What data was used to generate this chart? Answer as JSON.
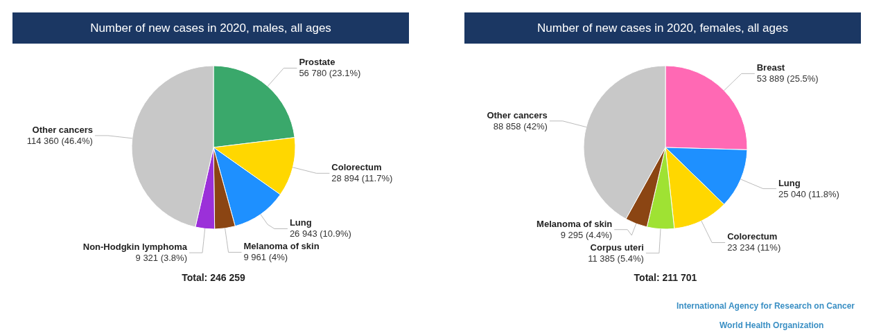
{
  "chart_data": [
    {
      "type": "pie",
      "title": "Number of new cases in 2020, males, all ages",
      "categories": [
        "Prostate",
        "Colorectum",
        "Lung",
        "Melanoma of skin",
        "Non-Hodgkin lymphoma",
        "Other cancers"
      ],
      "values": [
        56780,
        28894,
        26943,
        9961,
        9321,
        114360
      ],
      "value_labels": [
        "56 780 (23.1%)",
        "28 894 (11.7%)",
        "26 943 (10.9%)",
        "9 961 (4%)",
        "9 321 (3.8%)",
        "114 360 (46.4%)"
      ],
      "colors": [
        "#3aa86b",
        "#ffd700",
        "#1e90ff",
        "#8b4513",
        "#9b30d9",
        "#c8c8c8"
      ],
      "annotations": [
        "Total: 246 259"
      ]
    },
    {
      "type": "pie",
      "title": "Number of new cases in 2020, females, all ages",
      "categories": [
        "Breast",
        "Lung",
        "Colorectum",
        "Corpus uteri",
        "Melanoma of skin",
        "Other cancers"
      ],
      "values": [
        53889,
        25040,
        23234,
        11385,
        9295,
        88858
      ],
      "value_labels": [
        "53 889 (25.5%)",
        "25 040 (11.8%)",
        "23 234 (11%)",
        "11 385 (5.4%)",
        "9 295 (4.4%)",
        "88 858 (42%)"
      ],
      "colors": [
        "#ff69b4",
        "#1e90ff",
        "#ffd700",
        "#9fe233",
        "#8b4513",
        "#c8c8c8"
      ],
      "annotations": [
        "Total: 211 701",
        "International Agency for Research on Cancer",
        "World Health Organization"
      ]
    }
  ]
}
